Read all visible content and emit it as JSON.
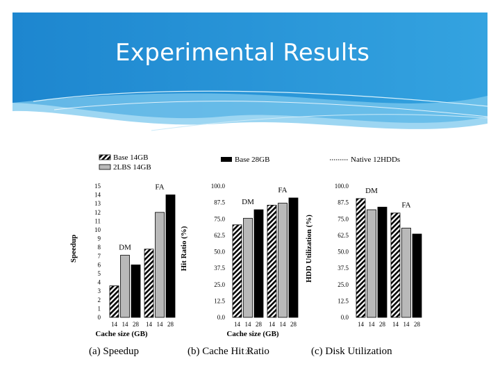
{
  "slide": {
    "title": "Experimental Results",
    "page_number": "22",
    "accent_color": "#2a93d5",
    "accent_light": "#8fd0f2"
  },
  "legend": {
    "base14": "Base 14GB",
    "lbs14": "2LBS 14GB",
    "base28": "Base 28GB",
    "native": "Native 12HDDs"
  },
  "chart_data": [
    {
      "type": "bar",
      "caption": "(a) Speedup",
      "ylabel": "Speedup",
      "xlabel": "Cache size (GB)",
      "ylim": [
        0,
        15
      ],
      "yticks": [
        "0",
        "1",
        "2",
        "3",
        "4",
        "5",
        "6",
        "7",
        "8",
        "9",
        "10",
        "11",
        "12",
        "13",
        "14",
        "15"
      ],
      "groups": [
        {
          "name": "DM",
          "x": [
            "14",
            "14",
            "28"
          ],
          "values": [
            3.6,
            7.1,
            6.0
          ]
        },
        {
          "name": "FA",
          "x": [
            "14",
            "14",
            "28"
          ],
          "values": [
            7.8,
            12.0,
            14.0
          ]
        }
      ]
    },
    {
      "type": "bar",
      "caption": "(b) Cache Hit Ratio",
      "ylabel": "Hit Ratio (%)",
      "xlabel": "Cache size (GB)",
      "ylim": [
        0,
        100
      ],
      "yticks": [
        "0.0",
        "12.5",
        "25.0",
        "37.5",
        "50.0",
        "62.5",
        "75.0",
        "87.5",
        "100.0"
      ],
      "groups": [
        {
          "name": "DM",
          "x": [
            "14",
            "14",
            "28"
          ],
          "values": [
            70.5,
            75.5,
            82.0
          ]
        },
        {
          "name": "FA",
          "x": [
            "14",
            "14",
            "28"
          ],
          "values": [
            85.5,
            87.0,
            91.0
          ]
        }
      ]
    },
    {
      "type": "bar",
      "caption": "(c) Disk Utilization",
      "ylabel": "HDD Utilization (%)",
      "xlabel": "",
      "ylim": [
        0,
        100
      ],
      "yticks": [
        "0.0",
        "12.5",
        "25.0",
        "37.5",
        "50.0",
        "62.5",
        "75.0",
        "87.5",
        "100.0"
      ],
      "groups": [
        {
          "name": "DM",
          "x": [
            "14",
            "14",
            "28"
          ],
          "values": [
            90.5,
            82.0,
            84.0
          ]
        },
        {
          "name": "FA",
          "x": [
            "14",
            "14",
            "28"
          ],
          "values": [
            79.5,
            68.0,
            63.5
          ]
        }
      ]
    }
  ]
}
